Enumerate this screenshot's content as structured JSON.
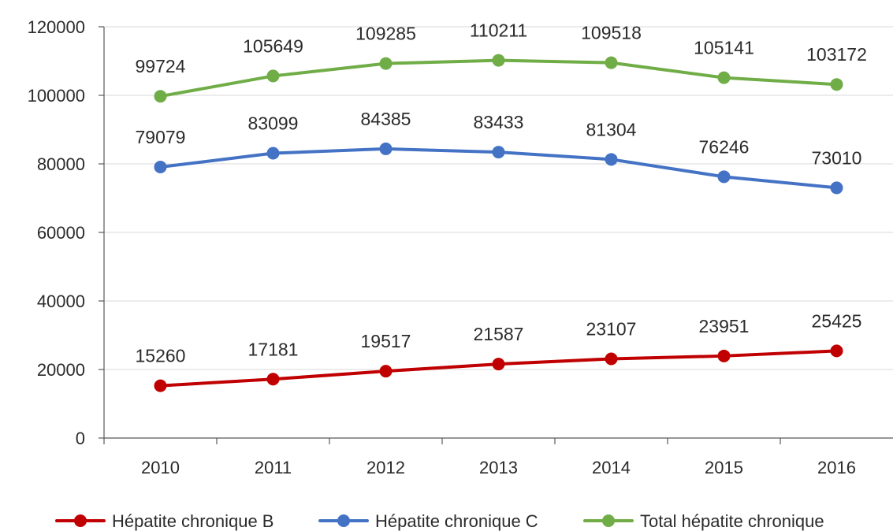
{
  "chart_data": {
    "type": "line",
    "title": "",
    "xlabel": "",
    "ylabel": "",
    "categories": [
      "2010",
      "2011",
      "2012",
      "2013",
      "2014",
      "2015",
      "2016"
    ],
    "ylim": [
      0,
      120000
    ],
    "yticks": [
      "0",
      "20000",
      "40000",
      "60000",
      "80000",
      "100000",
      "120000"
    ],
    "grid": "horizontal",
    "legend_position": "bottom",
    "series": [
      {
        "name": "Hépatite chronique B",
        "color": "#c00000",
        "values": [
          15260,
          17181,
          19517,
          21587,
          23107,
          23951,
          25425
        ]
      },
      {
        "name": "Hépatite chronique C",
        "color": "#4472c4",
        "values": [
          79079,
          83099,
          84385,
          83433,
          81304,
          76246,
          73010
        ]
      },
      {
        "name": "Total hépatite chronique",
        "color": "#70ad47",
        "values": [
          99724,
          105649,
          109285,
          110211,
          109518,
          105141,
          103172
        ]
      }
    ]
  }
}
